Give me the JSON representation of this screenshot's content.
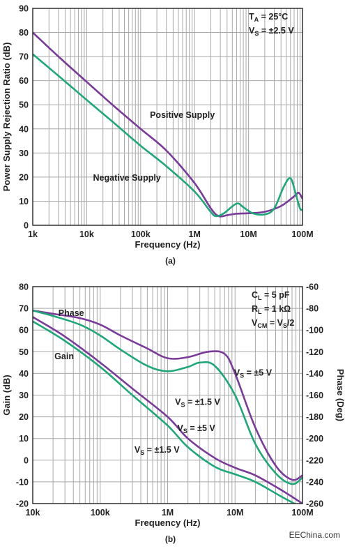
{
  "watermark": "EEChina.com",
  "chart_data": [
    {
      "id": "a",
      "type": "line",
      "caption": "(a)",
      "xlabel": "Frequency (Hz)",
      "ylabel": "Power Supply Rejection Ratio (dB)",
      "xscale": "log",
      "xlim": [
        1000,
        100000000
      ],
      "ylim": [
        0,
        90
      ],
      "grid": true,
      "x_tick_labels": [
        "1k",
        "10k",
        "100k",
        "1M",
        "10M",
        "100M"
      ],
      "y_tick_labels": [
        "0",
        "10",
        "20",
        "30",
        "40",
        "50",
        "60",
        "70",
        "80",
        "90"
      ],
      "conditions": [
        {
          "main": "T",
          "sub": "A",
          "rest": " = 25°C"
        },
        {
          "main": "V",
          "sub": "S",
          "rest": " = ±2.5 V"
        }
      ],
      "series": [
        {
          "name": "Positive Supply",
          "color": "#7a3a9a",
          "points": [
            [
              1000,
              80
            ],
            [
              3000,
              70
            ],
            [
              10000,
              59.5
            ],
            [
              30000,
              50
            ],
            [
              100000,
              40
            ],
            [
              300000,
              31
            ],
            [
              1000000,
              17.5
            ],
            [
              2000000,
              7
            ],
            [
              2800000,
              3.8
            ],
            [
              4000000,
              4.2
            ],
            [
              6000000,
              4.8
            ],
            [
              10000000,
              5
            ],
            [
              20000000,
              5.6
            ],
            [
              40000000,
              8
            ],
            [
              70000000,
              12
            ],
            [
              85000000,
              13.5
            ],
            [
              100000000,
              11
            ]
          ]
        },
        {
          "name": "Negative Supply",
          "color": "#1ea87a",
          "points": [
            [
              1000,
              71
            ],
            [
              3000,
              62
            ],
            [
              10000,
              52
            ],
            [
              30000,
              43
            ],
            [
              100000,
              33
            ],
            [
              300000,
              24.5
            ],
            [
              1000000,
              14
            ],
            [
              2000000,
              5.5
            ],
            [
              2500000,
              3.8
            ],
            [
              3500000,
              5
            ],
            [
              6000000,
              9
            ],
            [
              8000000,
              7.5
            ],
            [
              12000000,
              5
            ],
            [
              20000000,
              4.5
            ],
            [
              30000000,
              7
            ],
            [
              45000000,
              16
            ],
            [
              60000000,
              19.5
            ],
            [
              75000000,
              13
            ],
            [
              90000000,
              7
            ],
            [
              100000000,
              6.5
            ]
          ]
        }
      ]
    },
    {
      "id": "b",
      "type": "line",
      "caption": "(b)",
      "xlabel": "Frequency (Hz)",
      "ylabel": "Gain (dB)",
      "y2label": "Phase (Deg)",
      "xscale": "log",
      "xlim": [
        10000,
        100000000
      ],
      "ylim": [
        -20,
        80
      ],
      "y2lim": [
        -260,
        -60
      ],
      "grid": true,
      "x_tick_labels": [
        "10k",
        "100k",
        "1M",
        "10M",
        "100M"
      ],
      "y_tick_labels": [
        "-20",
        "-10",
        "0",
        "10",
        "20",
        "30",
        "40",
        "50",
        "60",
        "70",
        "80"
      ],
      "y2_tick_labels": [
        "-260",
        "-240",
        "-220",
        "-200",
        "-180",
        "-160",
        "-140",
        "-120",
        "-100",
        "-80",
        "-60"
      ],
      "conditions": [
        {
          "main": "C",
          "sub": "L",
          "rest": " = 5 pF"
        },
        {
          "main": "R",
          "sub": "L",
          "rest": " = 1 kΩ"
        },
        {
          "main": "V",
          "sub": "CM",
          "rest": " = V",
          "sub2": "S",
          "rest2": "/2"
        }
      ],
      "labels": {
        "phase": "Phase",
        "gain": "Gain",
        "vs5_phase": {
          "main": "V",
          "sub": "S",
          "rest": " = ±5 V"
        },
        "vs15_phase": {
          "main": "V",
          "sub": "S",
          "rest": " = ±1.5 V"
        },
        "vs5_gain": {
          "main": "V",
          "sub": "S",
          "rest": " = ±5 V"
        },
        "vs15_gain": {
          "main": "V",
          "sub": "S",
          "rest": " = ±1.5 V"
        }
      },
      "series": [
        {
          "name": "Phase VS = ±5 V",
          "axis": "right",
          "color": "#7a3a9a",
          "points": [
            [
              10000,
              -82
            ],
            [
              20000,
              -85
            ],
            [
              50000,
              -89
            ],
            [
              100000,
              -95
            ],
            [
              200000,
              -105
            ],
            [
              500000,
              -117
            ],
            [
              1000000,
              -126
            ],
            [
              2000000,
              -125
            ],
            [
              4000000,
              -120
            ],
            [
              7000000,
              -122
            ],
            [
              10000000,
              -140
            ],
            [
              20000000,
              -190
            ],
            [
              40000000,
              -225
            ],
            [
              70000000,
              -238
            ],
            [
              100000000,
              -234
            ]
          ]
        },
        {
          "name": "Phase VS = ±1.5 V",
          "axis": "right",
          "color": "#1ea87a",
          "points": [
            [
              10000,
              -82
            ],
            [
              20000,
              -87
            ],
            [
              50000,
              -95
            ],
            [
              100000,
              -105
            ],
            [
              200000,
              -118
            ],
            [
              500000,
              -133
            ],
            [
              1000000,
              -138
            ],
            [
              2000000,
              -134
            ],
            [
              3000000,
              -130
            ],
            [
              5000000,
              -133
            ],
            [
              10000000,
              -160
            ],
            [
              20000000,
              -205
            ],
            [
              40000000,
              -232
            ],
            [
              70000000,
              -242
            ],
            [
              100000000,
              -236
            ]
          ]
        },
        {
          "name": "Gain VS = ±5 V",
          "axis": "left",
          "color": "#7a3a9a",
          "points": [
            [
              10000,
              66
            ],
            [
              30000,
              57
            ],
            [
              100000,
              45
            ],
            [
              300000,
              33
            ],
            [
              1000000,
              20
            ],
            [
              2000000,
              10
            ],
            [
              5000000,
              1
            ],
            [
              10000000,
              -3.5
            ],
            [
              20000000,
              -7
            ],
            [
              50000000,
              -14
            ],
            [
              100000000,
              -20
            ]
          ]
        },
        {
          "name": "Gain VS = ±1.5 V",
          "axis": "left",
          "color": "#1ea87a",
          "points": [
            [
              10000,
              64
            ],
            [
              30000,
              55
            ],
            [
              100000,
              43
            ],
            [
              300000,
              30
            ],
            [
              1000000,
              16
            ],
            [
              2000000,
              6
            ],
            [
              5000000,
              -3
            ],
            [
              10000000,
              -6.5
            ],
            [
              20000000,
              -10
            ],
            [
              50000000,
              -17
            ],
            [
              100000000,
              -22
            ]
          ]
        }
      ]
    }
  ]
}
